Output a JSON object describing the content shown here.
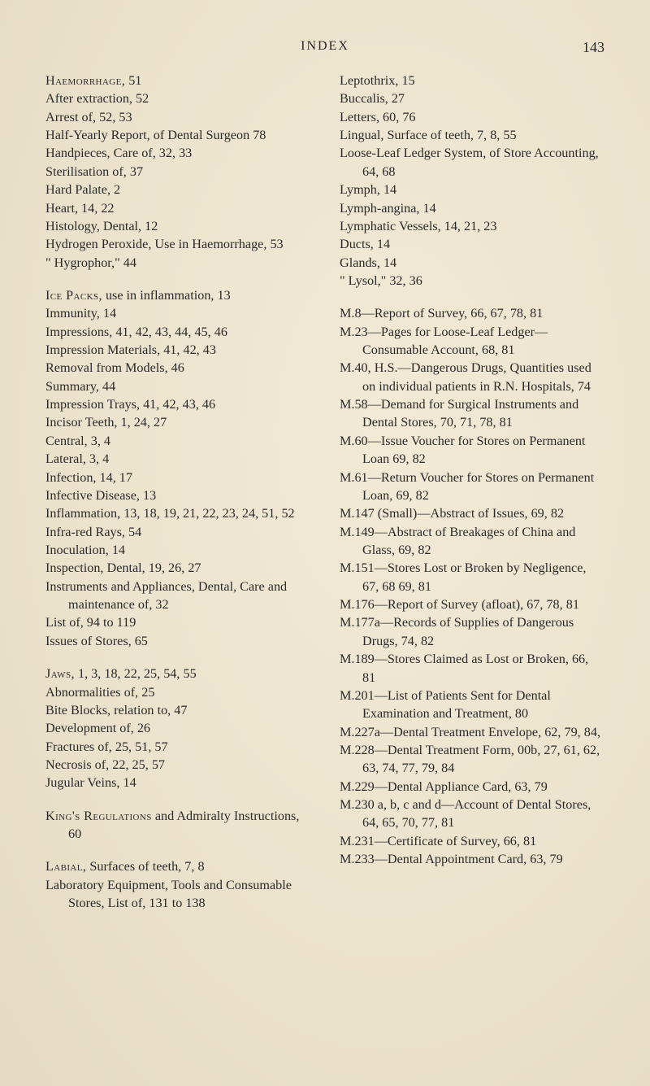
{
  "header": {
    "title": "INDEX",
    "page_number": "143"
  },
  "left": {
    "blocks": [
      {
        "entries": [
          {
            "head": "Haemorrhage,",
            "rest": " 51"
          },
          {
            "rest": "After extraction, 52"
          },
          {
            "rest": "Arrest of, 52, 53"
          },
          {
            "rest": "Half-Yearly Report, of Dental Surgeon 78"
          },
          {
            "rest": "Handpieces, Care of, 32, 33"
          },
          {
            "rest": "Sterilisation of, 37"
          },
          {
            "rest": "Hard Palate, 2"
          },
          {
            "rest": "Heart, 14, 22"
          },
          {
            "rest": "Histology, Dental, 12"
          },
          {
            "rest": "Hydrogen Peroxide, Use in Haemorrhage, 53"
          },
          {
            "rest": "\" Hygrophor,\" 44"
          }
        ]
      },
      {
        "entries": [
          {
            "head": "Ice Packs,",
            "rest": " use in inflammation, 13"
          },
          {
            "rest": "Immunity, 14"
          },
          {
            "rest": "Impressions, 41, 42, 43, 44, 45, 46"
          },
          {
            "rest": "Impression Materials, 41, 42, 43"
          },
          {
            "rest": "Removal from Models, 46"
          },
          {
            "rest": "Summary, 44"
          },
          {
            "rest": "Impression Trays, 41, 42, 43, 46"
          },
          {
            "rest": "Incisor Teeth, 1, 24, 27"
          },
          {
            "rest": "Central, 3, 4"
          },
          {
            "rest": "Lateral, 3, 4"
          },
          {
            "rest": "Infection, 14, 17"
          },
          {
            "rest": "Infective Disease, 13"
          },
          {
            "rest": "Inflammation, 13, 18, 19, 21, 22, 23, 24, 51, 52"
          },
          {
            "rest": "Infra-red Rays, 54"
          },
          {
            "rest": "Inoculation, 14"
          },
          {
            "rest": "Inspection, Dental, 19, 26, 27"
          },
          {
            "rest": "Instruments and Appliances, Dental, Care and maintenance of, 32"
          },
          {
            "rest": "List of, 94 to 119"
          },
          {
            "rest": "Issues of Stores, 65"
          }
        ]
      },
      {
        "entries": [
          {
            "head": "Jaws,",
            "rest": " 1, 3, 18, 22, 25, 54, 55"
          },
          {
            "rest": "Abnormalities of, 25"
          },
          {
            "rest": "Bite Blocks, relation to, 47"
          },
          {
            "rest": "Development of, 26"
          },
          {
            "rest": "Fractures of, 25, 51, 57"
          },
          {
            "rest": "Necrosis of, 22, 25, 57"
          },
          {
            "rest": "Jugular Veins, 14"
          }
        ]
      },
      {
        "entries": [
          {
            "head": "King's Regulations",
            "rest": " and Admiralty Instructions, 60"
          }
        ]
      },
      {
        "entries": [
          {
            "head": "Labial,",
            "rest": " Surfaces of teeth, 7, 8"
          },
          {
            "rest": "Laboratory Equipment, Tools and Consumable Stores, List of, 131 to 138"
          }
        ]
      }
    ]
  },
  "right": {
    "blocks": [
      {
        "entries": [
          {
            "rest": "Leptothrix, 15"
          },
          {
            "rest": "Buccalis, 27"
          },
          {
            "rest": "Letters, 60, 76"
          },
          {
            "rest": "Lingual, Surface of teeth, 7, 8, 55"
          },
          {
            "rest": "Loose-Leaf Ledger System, of Store Accounting, 64, 68"
          },
          {
            "rest": "Lymph, 14"
          },
          {
            "rest": "Lymph-angina, 14"
          },
          {
            "rest": "Lymphatic Vessels, 14, 21, 23"
          },
          {
            "rest": "Ducts, 14"
          },
          {
            "rest": "Glands, 14"
          },
          {
            "rest": "\" Lysol,\" 32, 36"
          }
        ]
      },
      {
        "entries": [
          {
            "rest": "M.8—Report of Survey, 66, 67, 78, 81"
          },
          {
            "rest": "M.23—Pages for Loose-Leaf Ledger—Consumable Account, 68, 81"
          },
          {
            "rest": "M.40, H.S.—Dangerous Drugs, Quantities used on individual patients in R.N. Hospitals, 74"
          },
          {
            "rest": "M.58—Demand for Surgical Instruments and Dental Stores, 70, 71, 78, 81"
          },
          {
            "rest": "M.60—Issue Voucher for Stores on Permanent Loan 69, 82"
          },
          {
            "rest": "M.61—Return Voucher for Stores on Permanent Loan, 69, 82"
          },
          {
            "rest": "M.147 (Small)—Abstract of Issues, 69, 82"
          },
          {
            "rest": "M.149—Abstract of Breakages of China and Glass, 69, 82"
          },
          {
            "rest": "M.151—Stores Lost or Broken by Negligence, 67, 68 69, 81"
          },
          {
            "rest": "M.176—Report of Survey (afloat), 67, 78, 81"
          },
          {
            "rest": "M.177a—Records of Supplies of Dangerous Drugs, 74, 82"
          },
          {
            "rest": "M.189—Stores Claimed as Lost or Broken, 66, 81"
          },
          {
            "rest": "M.201—List of Patients Sent for Dental Examination and Treatment, 80"
          },
          {
            "rest": "M.227a—Dental Treatment Envelope, 62, 79, 84,"
          },
          {
            "rest": "M.228—Dental Treatment Form, 00b, 27, 61, 62, 63, 74, 77, 79, 84"
          },
          {
            "rest": "M.229—Dental Appliance Card, 63, 79"
          },
          {
            "rest": "M.230 a, b, c and d—Account of Dental Stores, 64, 65, 70, 77, 81"
          },
          {
            "rest": "M.231—Certificate of Survey, 66, 81"
          },
          {
            "rest": "M.233—Dental Appointment Card, 63, 79"
          }
        ]
      }
    ]
  }
}
